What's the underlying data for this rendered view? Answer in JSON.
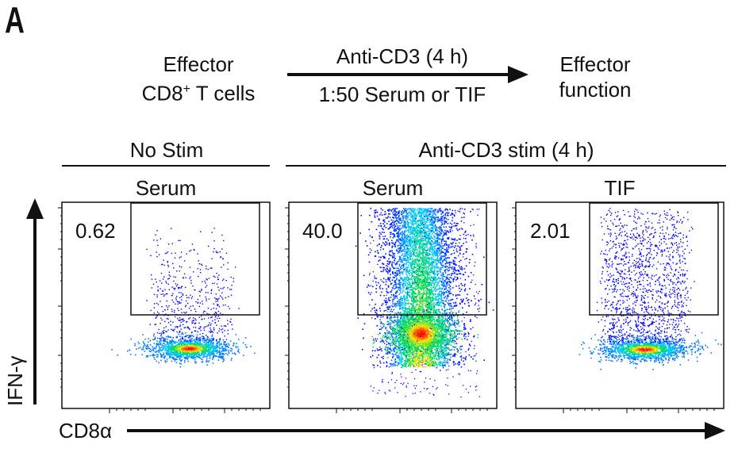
{
  "panel_label": "A",
  "schematic": {
    "left_line1": "Effector",
    "left_line2_pre": "CD8",
    "left_line2_sup": "+",
    "left_line2_post": " T cells",
    "arrow_top": "Anti-CD3 (4 h)",
    "arrow_bottom": "1:50 Serum or TIF",
    "right_line1": "Effector",
    "right_line2": "function"
  },
  "group_headers": {
    "left": "No Stim",
    "right": "Anti-CD3 stim (4 h)"
  },
  "axes": {
    "ylabel": "IFN-γ",
    "xlabel": "CD8α"
  },
  "chart_data": [
    {
      "type": "scatter",
      "panel": "Serum",
      "group": "No Stim",
      "gate_percent": "0.62",
      "description_values": {
        "ifng_positive_percent": 0.62
      }
    },
    {
      "type": "scatter",
      "panel": "Serum",
      "group": "Anti-CD3 stim (4 h)",
      "gate_percent": "40.0",
      "description_values": {
        "ifng_positive_percent": 40.0
      }
    },
    {
      "type": "scatter",
      "panel": "TIF",
      "group": "Anti-CD3 stim (4 h)",
      "gate_percent": "2.01",
      "description_values": {
        "ifng_positive_percent": 2.01
      }
    }
  ],
  "colors": {
    "low_density": "#0000ff",
    "high_density": "#ff0000",
    "gate": "#000000"
  }
}
